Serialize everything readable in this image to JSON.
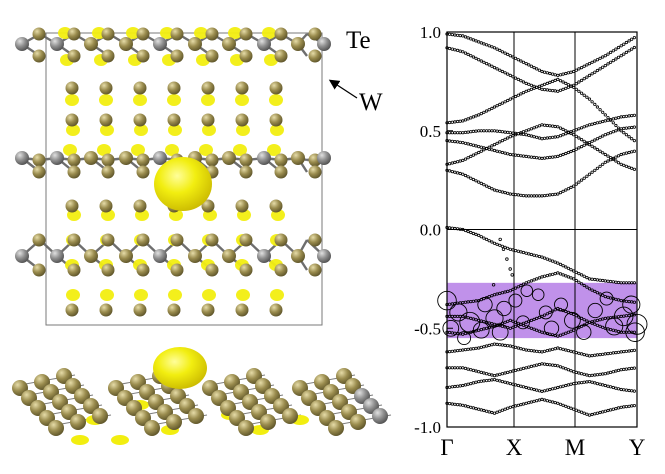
{
  "labels": {
    "te": "Te",
    "w": "W"
  },
  "colors": {
    "tellurium": "#9a8c4e",
    "tungsten": "#8f8f8f",
    "isosurface": "#f2ee10",
    "highlight": "#b57ee6",
    "bond": "#6e6e6e"
  },
  "chart_data": {
    "type": "scatter",
    "title": "",
    "xlabel": "",
    "ylabel": "",
    "x_ticks": [
      "Γ",
      "X",
      "M",
      "Y"
    ],
    "y_ticks": [
      "1.0",
      "0.5",
      "0.0",
      "-0.5",
      "-1.0"
    ],
    "ylim": [
      -1.0,
      1.0
    ],
    "grid": "vertical lines at X and M; horizontal line at 0.0",
    "highlight_band": {
      "ymin": -0.55,
      "ymax": -0.27
    },
    "bands": [
      [
        0.99,
        0.98,
        0.95,
        0.92,
        0.88,
        0.84,
        0.8,
        0.78,
        0.8,
        0.84,
        0.88,
        0.93,
        0.98
      ],
      [
        0.92,
        0.9,
        0.86,
        0.82,
        0.78,
        0.74,
        0.71,
        0.7,
        0.73,
        0.78,
        0.83,
        0.88,
        0.93
      ],
      [
        0.54,
        0.55,
        0.58,
        0.62,
        0.66,
        0.7,
        0.73,
        0.76,
        0.72,
        0.66,
        0.58,
        0.5,
        0.44
      ],
      [
        0.49,
        0.49,
        0.5,
        0.5,
        0.49,
        0.48,
        0.46,
        0.47,
        0.5,
        0.53,
        0.55,
        0.57,
        0.58
      ],
      [
        0.45,
        0.44,
        0.42,
        0.4,
        0.38,
        0.37,
        0.36,
        0.37,
        0.4,
        0.44,
        0.48,
        0.51,
        0.52
      ],
      [
        0.33,
        0.35,
        0.39,
        0.43,
        0.47,
        0.5,
        0.53,
        0.52,
        0.48,
        0.43,
        0.38,
        0.33,
        0.3
      ],
      [
        0.3,
        0.28,
        0.24,
        0.2,
        0.18,
        0.17,
        0.17,
        0.18,
        0.22,
        0.28,
        0.34,
        0.38,
        0.4
      ],
      [
        0.01,
        0.0,
        -0.03,
        -0.07,
        -0.1,
        -0.12,
        -0.14,
        -0.17,
        -0.21,
        -0.25,
        -0.26,
        -0.27,
        -0.27
      ],
      [
        -0.38,
        -0.37,
        -0.36,
        -0.33,
        -0.31,
        -0.27,
        -0.24,
        -0.22,
        -0.25,
        -0.3,
        -0.34,
        -0.36,
        -0.37
      ],
      [
        -0.44,
        -0.44,
        -0.46,
        -0.48,
        -0.5,
        -0.47,
        -0.44,
        -0.4,
        -0.43,
        -0.47,
        -0.5,
        -0.52,
        -0.52
      ],
      [
        -0.52,
        -0.53,
        -0.51,
        -0.49,
        -0.46,
        -0.49,
        -0.52,
        -0.54,
        -0.51,
        -0.47,
        -0.45,
        -0.44,
        -0.43
      ],
      [
        -0.62,
        -0.61,
        -0.6,
        -0.58,
        -0.59,
        -0.61,
        -0.62,
        -0.6,
        -0.62,
        -0.64,
        -0.63,
        -0.62,
        -0.61
      ],
      [
        -0.7,
        -0.7,
        -0.72,
        -0.74,
        -0.72,
        -0.7,
        -0.68,
        -0.69,
        -0.72,
        -0.74,
        -0.73,
        -0.71,
        -0.7
      ],
      [
        -0.8,
        -0.79,
        -0.77,
        -0.76,
        -0.78,
        -0.8,
        -0.82,
        -0.8,
        -0.78,
        -0.77,
        -0.79,
        -0.81,
        -0.82
      ],
      [
        -0.88,
        -0.89,
        -0.91,
        -0.93,
        -0.9,
        -0.88,
        -0.86,
        -0.88,
        -0.91,
        -0.94,
        -0.92,
        -0.9,
        -0.89
      ]
    ],
    "gap_state": [
      {
        "x": 0.8,
        "y": -0.05
      },
      {
        "x": 0.85,
        "y": -0.1
      },
      {
        "x": 0.9,
        "y": -0.15
      },
      {
        "x": 0.95,
        "y": -0.2
      },
      {
        "x": 0.98,
        "y": -0.23
      },
      {
        "x": 0.7,
        "y": -0.28
      }
    ],
    "weighted_points": [
      {
        "x": 0.0,
        "y": -0.36,
        "w": 0.9
      },
      {
        "x": 0.06,
        "y": -0.42,
        "w": 0.8
      },
      {
        "x": 0.12,
        "y": -0.47,
        "w": 1.0
      },
      {
        "x": 0.18,
        "y": -0.51,
        "w": 0.7
      },
      {
        "x": 0.25,
        "y": -0.45,
        "w": 0.8
      },
      {
        "x": 0.3,
        "y": -0.4,
        "w": 0.6
      },
      {
        "x": 0.36,
        "y": -0.36,
        "w": 0.5
      },
      {
        "x": 0.42,
        "y": -0.31,
        "w": 0.4
      },
      {
        "x": 0.02,
        "y": -0.5,
        "w": 0.7
      },
      {
        "x": 0.09,
        "y": -0.55,
        "w": 0.5
      },
      {
        "x": 0.2,
        "y": -0.38,
        "w": 0.6
      },
      {
        "x": 0.28,
        "y": -0.52,
        "w": 0.7
      },
      {
        "x": 0.4,
        "y": -0.47,
        "w": 0.5
      },
      {
        "x": 0.48,
        "y": -0.33,
        "w": 0.4
      },
      {
        "x": 0.52,
        "y": -0.42,
        "w": 0.5
      },
      {
        "x": 0.55,
        "y": -0.5,
        "w": 0.6
      },
      {
        "x": 0.6,
        "y": -0.38,
        "w": 0.5
      },
      {
        "x": 0.66,
        "y": -0.46,
        "w": 0.7
      },
      {
        "x": 0.72,
        "y": -0.52,
        "w": 0.6
      },
      {
        "x": 0.78,
        "y": -0.41,
        "w": 0.6
      },
      {
        "x": 0.84,
        "y": -0.35,
        "w": 0.5
      },
      {
        "x": 0.88,
        "y": -0.49,
        "w": 0.8
      },
      {
        "x": 0.93,
        "y": -0.44,
        "w": 0.9
      },
      {
        "x": 0.97,
        "y": -0.38,
        "w": 0.8
      },
      {
        "x": 1.0,
        "y": -0.48,
        "w": 1.0
      },
      {
        "x": 0.99,
        "y": -0.52,
        "w": 0.9
      }
    ]
  }
}
